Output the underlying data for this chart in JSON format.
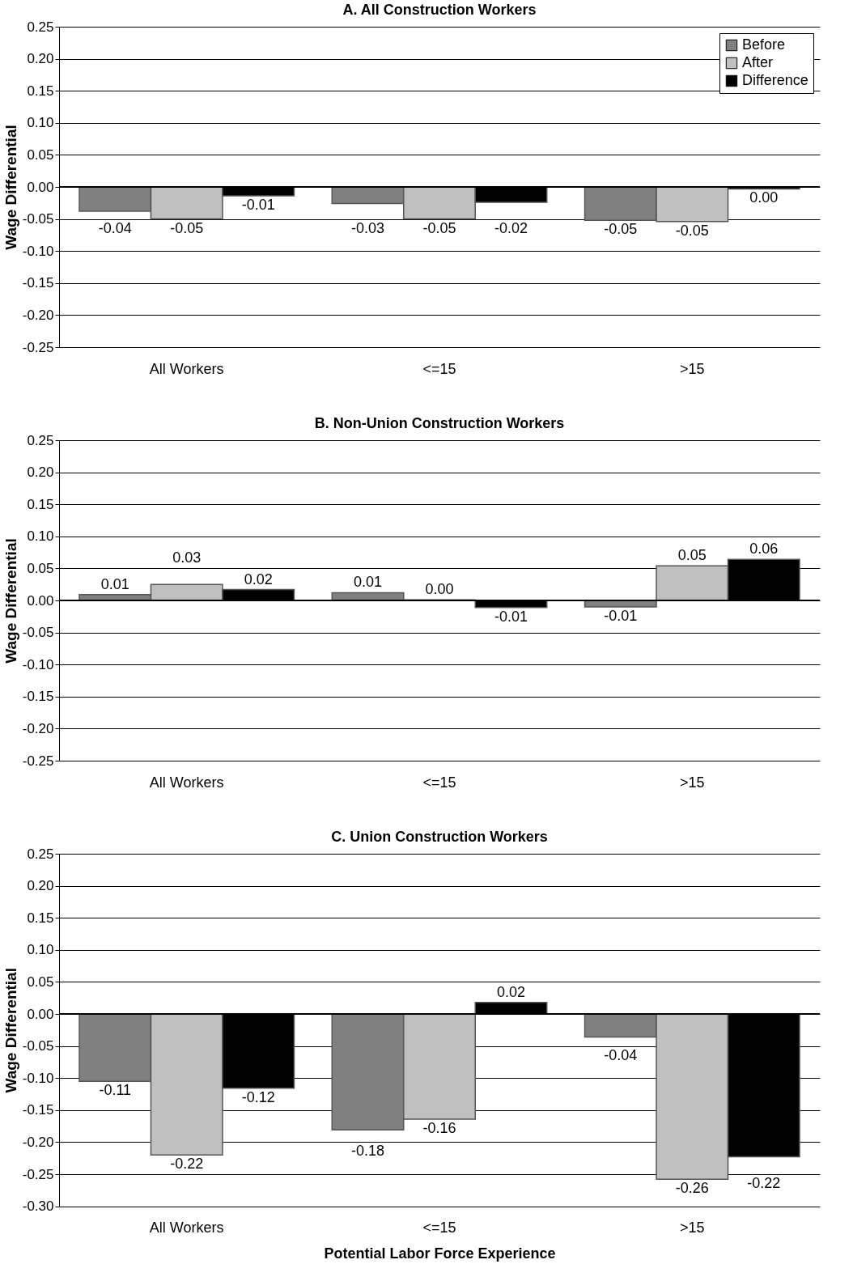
{
  "chart_data": [
    {
      "type": "bar",
      "title": "A. All Construction Workers",
      "ylabel": "Wage Differential",
      "categories": [
        "All Workers",
        "<=15",
        ">15"
      ],
      "series": [
        {
          "name": "Before",
          "color": "#808080",
          "values": [
            -0.038,
            -0.026,
            -0.052
          ],
          "value_labels": [
            "-0.04",
            "-0.03",
            "-0.05"
          ]
        },
        {
          "name": "After",
          "color": "#c0c0c0",
          "values": [
            -0.05,
            -0.05,
            -0.054
          ],
          "value_labels": [
            "-0.05",
            "-0.05",
            "-0.05"
          ]
        },
        {
          "name": "Difference",
          "color": "#000000",
          "values": [
            -0.014,
            -0.024,
            -0.003
          ],
          "value_labels": [
            "-0.01",
            "-0.02",
            "0.00"
          ]
        }
      ],
      "ylim": [
        -0.25,
        0.25
      ],
      "yticks": [
        {
          "value": -0.25,
          "label": "-0.25"
        },
        {
          "value": -0.2,
          "label": "-0.20"
        },
        {
          "value": -0.15,
          "label": "-0.15"
        },
        {
          "value": -0.1,
          "label": "-0.10"
        },
        {
          "value": -0.05,
          "label": "-0.05"
        },
        {
          "value": 0,
          "label": "0.00"
        },
        {
          "value": 0.05,
          "label": "0.05"
        },
        {
          "value": 0.1,
          "label": "0.10"
        },
        {
          "value": 0.15,
          "label": "0.15"
        },
        {
          "value": 0.2,
          "label": "0.20"
        },
        {
          "value": 0.25,
          "label": "0.25"
        }
      ],
      "grid": "y",
      "legend": "top right"
    },
    {
      "type": "bar",
      "title": "B. Non-Union Construction Workers",
      "ylabel": "Wage Differential",
      "categories": [
        "All Workers",
        "<=15",
        ">15"
      ],
      "series": [
        {
          "color": "#808080",
          "values": [
            0.009,
            0.012,
            -0.01
          ],
          "value_labels": [
            "0.01",
            "0.01",
            "-0.01"
          ]
        },
        {
          "color": "#c0c0c0",
          "values": [
            0.025,
            0.001,
            0.054
          ],
          "value_labels": [
            "0.03",
            "0.00",
            "0.05"
          ]
        },
        {
          "color": "#000000",
          "values": [
            0.017,
            -0.011,
            0.064
          ],
          "value_labels": [
            "0.02",
            "-0.01",
            "0.06"
          ]
        }
      ],
      "ylim": [
        -0.25,
        0.25
      ],
      "yticks": [
        {
          "value": -0.25,
          "label": "-0.25"
        },
        {
          "value": -0.2,
          "label": "-0.20"
        },
        {
          "value": -0.15,
          "label": "-0.15"
        },
        {
          "value": -0.1,
          "label": "-0.10"
        },
        {
          "value": -0.05,
          "label": "-0.05"
        },
        {
          "value": 0,
          "label": "0.00"
        },
        {
          "value": 0.05,
          "label": "0.05"
        },
        {
          "value": 0.1,
          "label": "0.10"
        },
        {
          "value": 0.15,
          "label": "0.15"
        },
        {
          "value": 0.2,
          "label": "0.20"
        },
        {
          "value": 0.25,
          "label": "0.25"
        }
      ],
      "grid": "y"
    },
    {
      "type": "bar",
      "title": "C. Union Construction Workers",
      "ylabel": "Wage Differential",
      "xlabel": "Potential Labor Force Experience",
      "categories": [
        "All Workers",
        "<=15",
        ">15"
      ],
      "series": [
        {
          "color": "#808080",
          "values": [
            -0.105,
            -0.181,
            -0.036
          ],
          "value_labels": [
            "-0.11",
            "-0.18",
            "-0.04"
          ]
        },
        {
          "color": "#c0c0c0",
          "values": [
            -0.22,
            -0.164,
            -0.258
          ],
          "value_labels": [
            "-0.22",
            "-0.16",
            "-0.26"
          ]
        },
        {
          "color": "#000000",
          "values": [
            -0.116,
            0.018,
            -0.223
          ],
          "value_labels": [
            "-0.12",
            "0.02",
            "-0.22"
          ]
        }
      ],
      "ylim": [
        -0.3,
        0.25
      ],
      "yticks": [
        {
          "value": -0.3,
          "label": "-0.30"
        },
        {
          "value": -0.25,
          "label": "-0.25"
        },
        {
          "value": -0.2,
          "label": "-0.20"
        },
        {
          "value": -0.15,
          "label": "-0.15"
        },
        {
          "value": -0.1,
          "label": "-0.10"
        },
        {
          "value": -0.05,
          "label": "-0.05"
        },
        {
          "value": 0,
          "label": "0.00"
        },
        {
          "value": 0.05,
          "label": "0.05"
        },
        {
          "value": 0.1,
          "label": "0.10"
        },
        {
          "value": 0.15,
          "label": "0.15"
        },
        {
          "value": 0.2,
          "label": "0.20"
        },
        {
          "value": 0.25,
          "label": "0.25"
        }
      ],
      "grid": "y"
    }
  ]
}
